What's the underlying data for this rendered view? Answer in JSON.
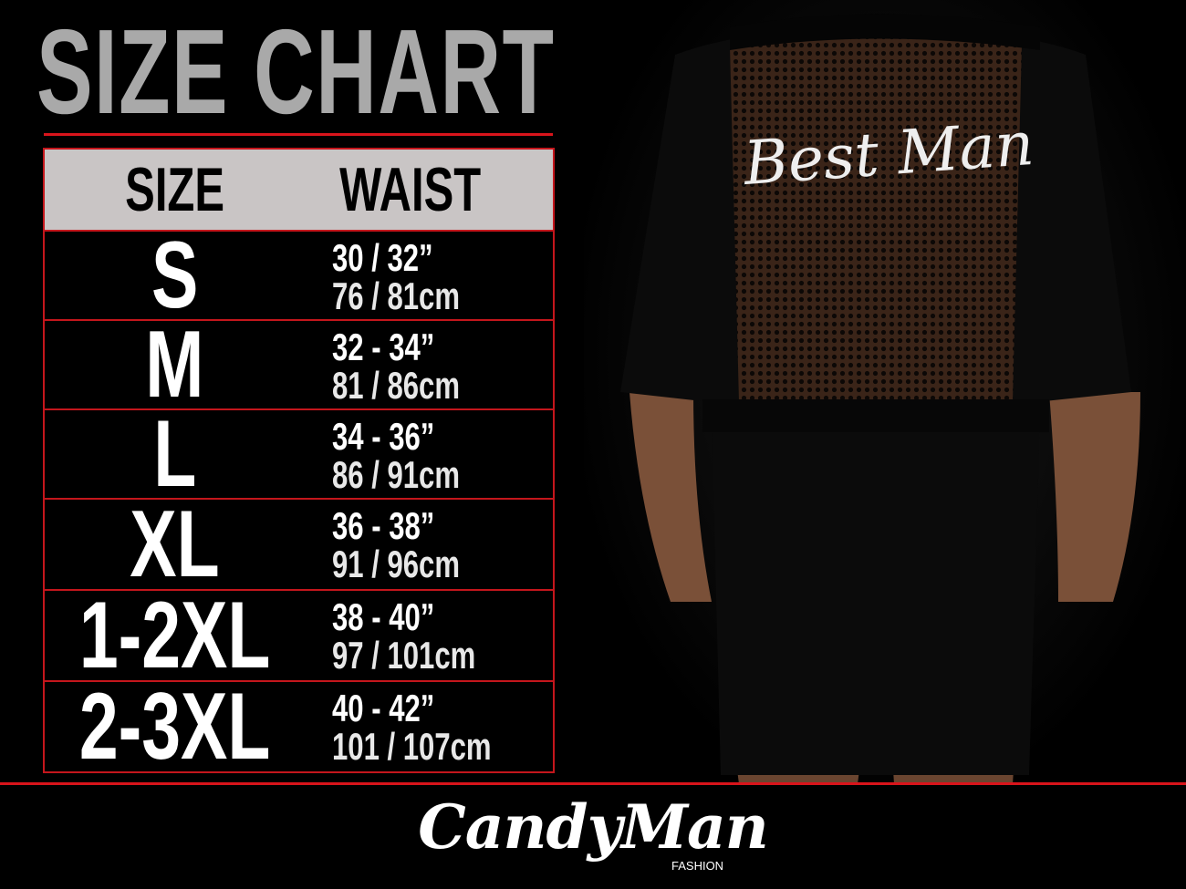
{
  "title": "SIZE CHART",
  "table": {
    "headers": {
      "size": "SIZE",
      "waist": "WAIST"
    },
    "rows": [
      {
        "size": "S",
        "inches": "30 / 32”",
        "cm": "76 / 81cm"
      },
      {
        "size": "M",
        "inches": "32 - 34”",
        "cm": "81 / 86cm"
      },
      {
        "size": "L",
        "inches": "34 - 36”",
        "cm": "86 / 91cm"
      },
      {
        "size": "XL",
        "inches": "36 - 38”",
        "cm": "91 / 96cm"
      },
      {
        "size": "1-2XL",
        "inches": "38 - 40”",
        "cm": "97 / 101cm"
      },
      {
        "size": "2-3XL",
        "inches": "40 - 42”",
        "cm": "101 / 107cm"
      }
    ]
  },
  "product_print": "Best Man",
  "brand": {
    "name": "CandyMan",
    "sub": "FASHION"
  },
  "colors": {
    "accent": "#d8141b",
    "header_bg": "#c9c5c5",
    "title": "#a9a9a9"
  }
}
